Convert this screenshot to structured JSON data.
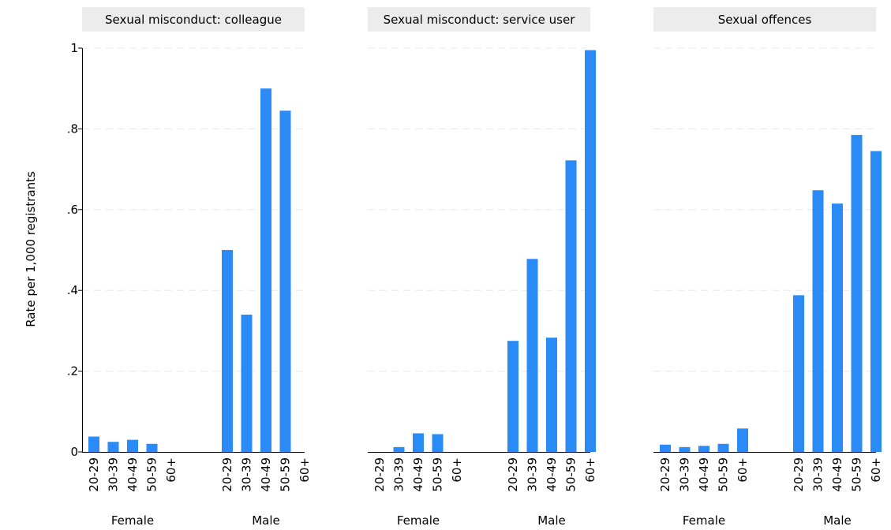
{
  "chart_data": {
    "type": "bar",
    "ylabel": "Rate per 1,000 registrants",
    "ylim": [
      0,
      1
    ],
    "yticks": [
      {
        "value": 0,
        "label": "0"
      },
      {
        "value": 0.2,
        "label": ".2"
      },
      {
        "value": 0.4,
        "label": ".4"
      },
      {
        "value": 0.6,
        "label": ".6"
      },
      {
        "value": 0.8,
        "label": ".8"
      },
      {
        "value": 1,
        "label": "1"
      }
    ],
    "grid": true,
    "colors": {
      "bar": "#2a8af6",
      "header": "#ececec"
    },
    "groups": [
      "Female",
      "Male"
    ],
    "categories": [
      "20-29",
      "30-39",
      "40-49",
      "50-59",
      "60+"
    ],
    "panels": [
      {
        "title": "Sexual misconduct: colleague",
        "series": [
          {
            "group": "Female",
            "values": [
              0.038,
              0.025,
              0.03,
              0.02,
              0
            ]
          },
          {
            "group": "Male",
            "values": [
              0.5,
              0.34,
              0.9,
              0.845,
              0
            ]
          }
        ]
      },
      {
        "title": "Sexual misconduct: service user",
        "series": [
          {
            "group": "Female",
            "values": [
              0,
              0.012,
              0.046,
              0.044,
              0
            ]
          },
          {
            "group": "Male",
            "values": [
              0.275,
              0.478,
              0.283,
              0.722,
              0.995
            ]
          }
        ]
      },
      {
        "title": "Sexual offences",
        "series": [
          {
            "group": "Female",
            "values": [
              0.018,
              0.012,
              0.015,
              0.02,
              0.058
            ]
          },
          {
            "group": "Male",
            "values": [
              0.388,
              0.648,
              0.615,
              0.785,
              0.745
            ]
          }
        ]
      }
    ]
  }
}
